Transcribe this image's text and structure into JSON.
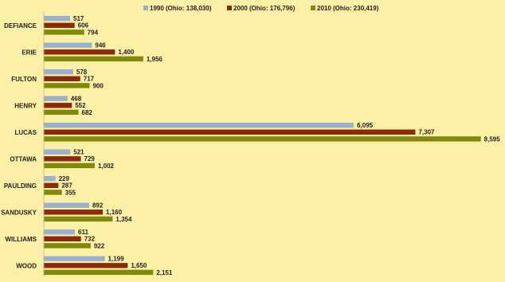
{
  "chart_data": {
    "type": "bar",
    "orientation": "horizontal",
    "title": "",
    "xlabel": "",
    "ylabel": "",
    "grid": false,
    "legend_position": "top",
    "xlim": [
      0,
      8600
    ],
    "categories": [
      "DEFIANCE",
      "ERIE",
      "FULTON",
      "HENRY",
      "LUCAS",
      "OTTAWA",
      "PAULDING",
      "SANDUSKY",
      "WILLIAMS",
      "WOOD"
    ],
    "series": [
      {
        "name": "1990 (Ohio: 138,030)",
        "color": "#9ab0cf",
        "values": [
          517,
          946,
          578,
          468,
          6095,
          521,
          229,
          892,
          611,
          1199
        ],
        "labels": [
          "517",
          "946",
          "578",
          "468",
          "6,095",
          "521",
          "229",
          "892",
          "611",
          "1,199"
        ]
      },
      {
        "name": "2000 (Ohio: 176,796)",
        "color": "#8b2a0a",
        "values": [
          606,
          1400,
          717,
          552,
          7307,
          729,
          287,
          1160,
          732,
          1650
        ],
        "labels": [
          "606",
          "1,400",
          "717",
          "552",
          "7,307",
          "729",
          "287",
          "1,160",
          "732",
          "1,650"
        ]
      },
      {
        "name": "2010 (Ohio: 230,419)",
        "color": "#7f8a0a",
        "values": [
          794,
          1956,
          900,
          682,
          8595,
          1002,
          355,
          1354,
          922,
          2151
        ],
        "labels": [
          "794",
          "1,956",
          "900",
          "682",
          "8,595",
          "1,002",
          "355",
          "1,354",
          "922",
          "2,151"
        ]
      }
    ]
  }
}
